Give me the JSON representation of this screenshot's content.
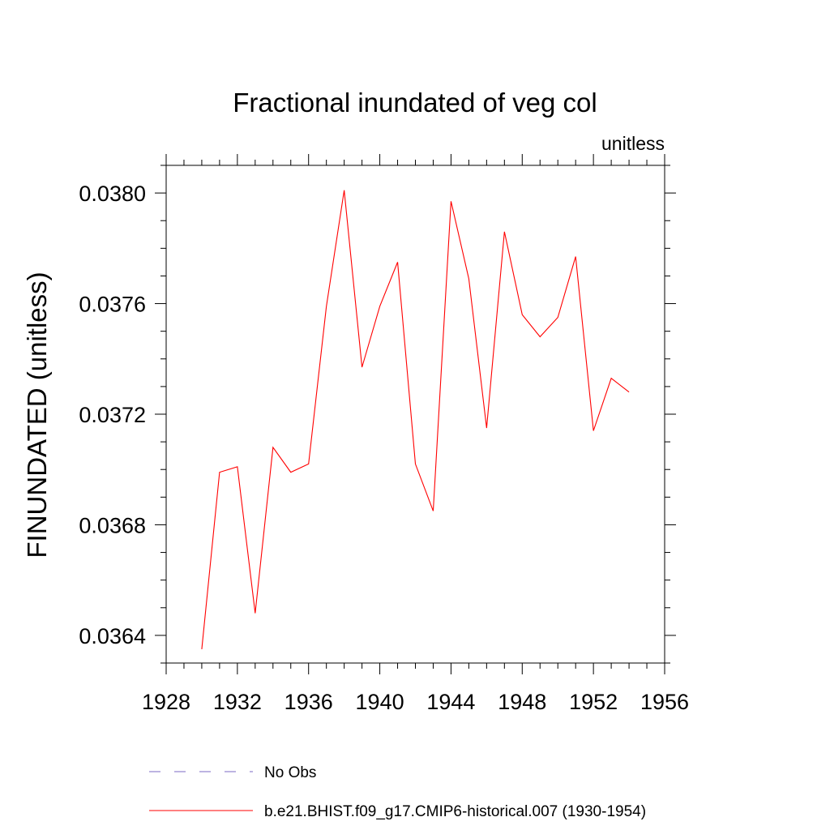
{
  "chart_data": {
    "type": "line",
    "title": "Fractional inundated of veg col",
    "units_label": "unitless",
    "ylabel": "FINUNDATED  (unitless)",
    "xlabel": "",
    "xlim": [
      1928,
      1956
    ],
    "ylim": [
      0.0363,
      0.0381
    ],
    "x_ticks": [
      "1928",
      "1932",
      "1936",
      "1940",
      "1944",
      "1948",
      "1952",
      "1956"
    ],
    "y_ticks": [
      "0.0364",
      "0.0368",
      "0.0372",
      "0.0376",
      "0.0380"
    ],
    "grid": false,
    "series": [
      {
        "name": "b.e21.BHIST.f09_g17.CMIP6-historical.007 (1930-1954)",
        "color": "#ff0000",
        "x": [
          1930,
          1931,
          1932,
          1933,
          1934,
          1935,
          1936,
          1937,
          1938,
          1939,
          1940,
          1941,
          1942,
          1943,
          1944,
          1945,
          1946,
          1947,
          1948,
          1949,
          1950,
          1951,
          1952,
          1953,
          1954
        ],
        "y": [
          0.03635,
          0.03699,
          0.03701,
          0.03648,
          0.03708,
          0.03699,
          0.03702,
          0.03759,
          0.03801,
          0.03737,
          0.03759,
          0.03775,
          0.03702,
          0.03685,
          0.03797,
          0.03769,
          0.03715,
          0.03786,
          0.03756,
          0.03748,
          0.03755,
          0.03777,
          0.03714,
          0.03733,
          0.03728
        ]
      }
    ],
    "legend": {
      "placement": "bottom",
      "entries": [
        {
          "label": "No Obs",
          "color": "#7b68c4",
          "style": "dashed"
        },
        {
          "label": "b.e21.BHIST.f09_g17.CMIP6-historical.007 (1930-1954)",
          "color": "#ff0000",
          "style": "solid"
        }
      ]
    }
  }
}
